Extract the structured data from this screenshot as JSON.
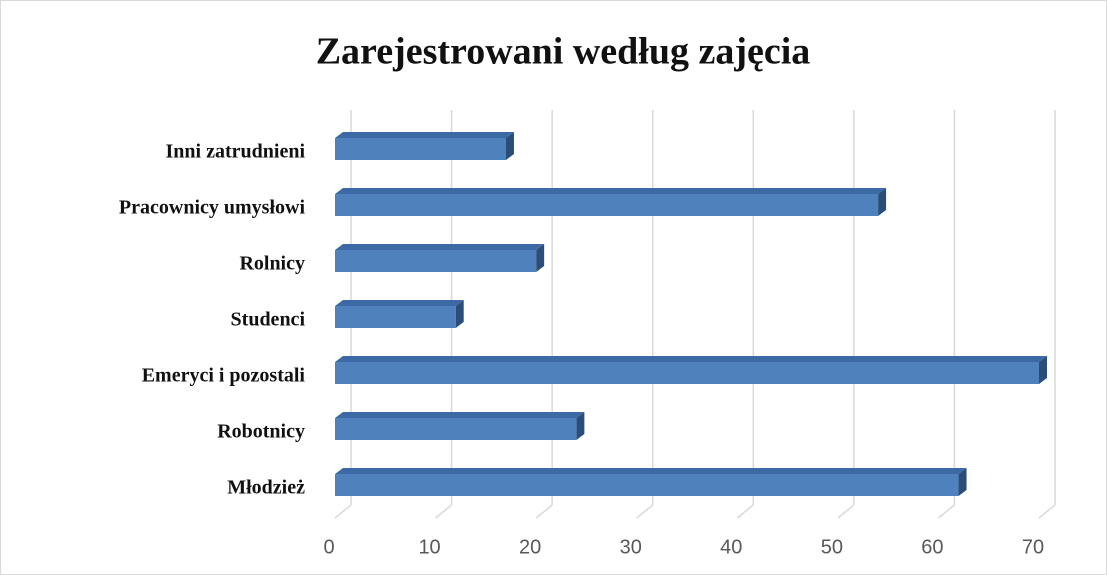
{
  "chart_data": {
    "type": "bar",
    "orientation": "horizontal",
    "title": "Zarejestrowani według zajęcia",
    "categories": [
      "Młodzież",
      "Robotnicy",
      "Emeryci i pozostali",
      "Studenci",
      "Rolnicy",
      "Pracownicy umysłowi",
      "Inni zatrudnieni"
    ],
    "values": [
      62,
      24,
      70,
      12,
      20,
      54,
      17
    ],
    "color": "#4f81bd",
    "xlim": [
      0,
      70
    ],
    "xticks": [
      0,
      10,
      20,
      30,
      40,
      50,
      60,
      70
    ],
    "grid": true
  }
}
